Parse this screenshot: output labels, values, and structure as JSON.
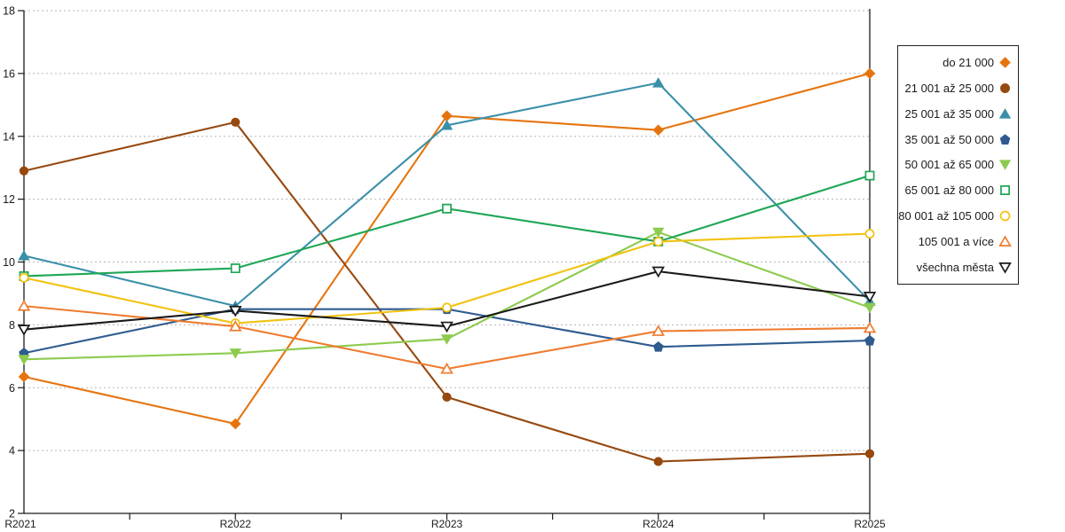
{
  "chart_data": {
    "type": "line",
    "title": "",
    "xlabel": "",
    "ylabel": "",
    "categories": [
      "R2021",
      "R2022",
      "R2023",
      "R2024",
      "R2025"
    ],
    "y_axis": {
      "min": 2,
      "max": 18,
      "tick_step": 2,
      "tick_labels": [
        "2",
        "4",
        "6",
        "8",
        "10",
        "12",
        "14",
        "16",
        "18"
      ]
    },
    "grid": "horizontal-dashed",
    "legend_position": "right-outside",
    "series": [
      {
        "name": "do 21 000",
        "color": "#E6740E",
        "marker": "diamond",
        "marker_style": "filled",
        "values": [
          6.35,
          4.85,
          14.65,
          14.2,
          16.0
        ]
      },
      {
        "name": "21 001 až 25 000",
        "color": "#96490F",
        "marker": "circle",
        "marker_style": "filled",
        "values": [
          12.9,
          14.45,
          5.7,
          3.65,
          3.9
        ]
      },
      {
        "name": "25 001 až 35 000",
        "color": "#3A8FA8",
        "marker": "triangle-up",
        "marker_style": "filled",
        "values": [
          10.2,
          8.6,
          14.35,
          15.7,
          8.75
        ]
      },
      {
        "name": "35 001 až 50 000",
        "color": "#2F5B8F",
        "marker": "pentagon",
        "marker_style": "filled",
        "values": [
          7.1,
          8.5,
          8.5,
          7.3,
          7.5
        ]
      },
      {
        "name": "50 001 až 65 000",
        "color": "#8CCB4E",
        "marker": "triangle-down",
        "marker_style": "filled",
        "values": [
          6.9,
          7.1,
          7.55,
          10.95,
          8.55
        ]
      },
      {
        "name": "65 001 až 80 000",
        "color": "#1EA655",
        "marker": "square",
        "marker_style": "open",
        "values": [
          9.55,
          9.8,
          11.7,
          10.65,
          12.75
        ]
      },
      {
        "name": "80 001 až 105 000",
        "color": "#F2C211",
        "marker": "circle",
        "marker_style": "open",
        "values": [
          9.5,
          8.05,
          8.55,
          10.65,
          10.9
        ]
      },
      {
        "name": "105 001 a více",
        "color": "#EE7C30",
        "marker": "triangle-up",
        "marker_style": "open",
        "values": [
          8.6,
          7.95,
          6.6,
          7.8,
          7.9
        ]
      },
      {
        "name": "všechna města",
        "color": "#1A1A1A",
        "marker": "triangle-down",
        "marker_style": "open",
        "values": [
          7.85,
          8.45,
          7.95,
          9.7,
          8.9
        ]
      }
    ]
  }
}
